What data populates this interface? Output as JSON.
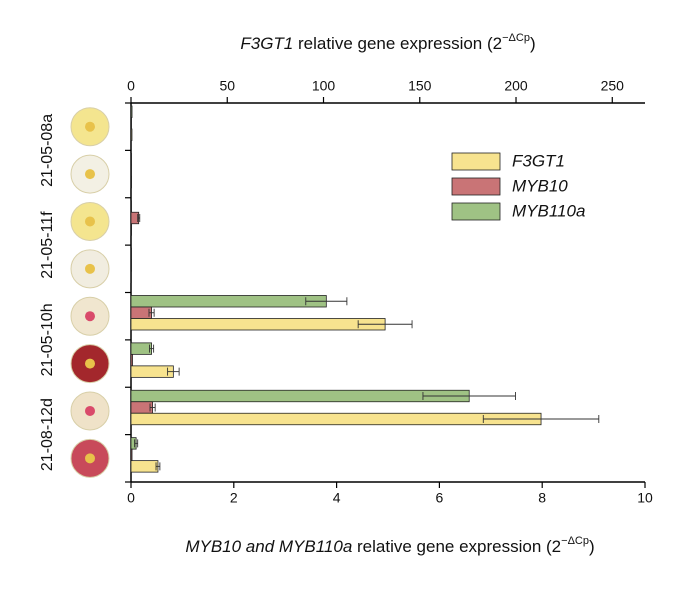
{
  "chart_data": {
    "type": "bar",
    "orientation": "horizontal",
    "groups": [
      "21-05-08a",
      "21-05-11f",
      "21-05-10h",
      "21-08-12d"
    ],
    "categories": [
      null,
      null,
      null,
      null,
      null,
      null,
      null,
      null
    ],
    "x2label": {
      "gene": "F3GT1",
      "text": " relative gene expression (2",
      "sup": "−ΔCp",
      "close": ")"
    },
    "xlabel": {
      "gene": "MYB10 and MYB110a",
      "text": " relative gene expression (2",
      "sup": "−ΔCp",
      "close": ")"
    },
    "xlim": [
      0,
      10
    ],
    "xticks": [
      0,
      2,
      4,
      6,
      8,
      10
    ],
    "x2lim": [
      0,
      267
    ],
    "x2ticks": [
      0,
      50,
      100,
      150,
      200,
      250
    ],
    "legend": "upper right",
    "series": [
      {
        "name": "MYB110a",
        "color": "#9fc284",
        "axis": "x",
        "values": [
          0.02,
          0.01,
          0.01,
          0.01,
          3.8,
          0.4,
          6.58,
          0.1
        ],
        "errors": [
          0,
          0,
          0,
          0,
          0.4,
          0.04,
          0.9,
          0.03
        ]
      },
      {
        "name": "MYB10",
        "color": "#c97476",
        "axis": "x",
        "values": [
          0.01,
          0.01,
          0.15,
          0.01,
          0.4,
          0.03,
          0.42,
          0.02
        ],
        "errors": [
          0,
          0,
          0.02,
          0,
          0.05,
          0,
          0.05,
          0
        ]
      },
      {
        "name": "F3GT1",
        "color": "#f7e38f",
        "axis": "x2",
        "values": [
          0.5,
          0.3,
          0.3,
          0.2,
          132,
          22,
          213,
          14
        ],
        "errors": [
          0,
          0,
          0,
          0,
          14,
          3,
          30,
          1
        ]
      }
    ]
  }
}
